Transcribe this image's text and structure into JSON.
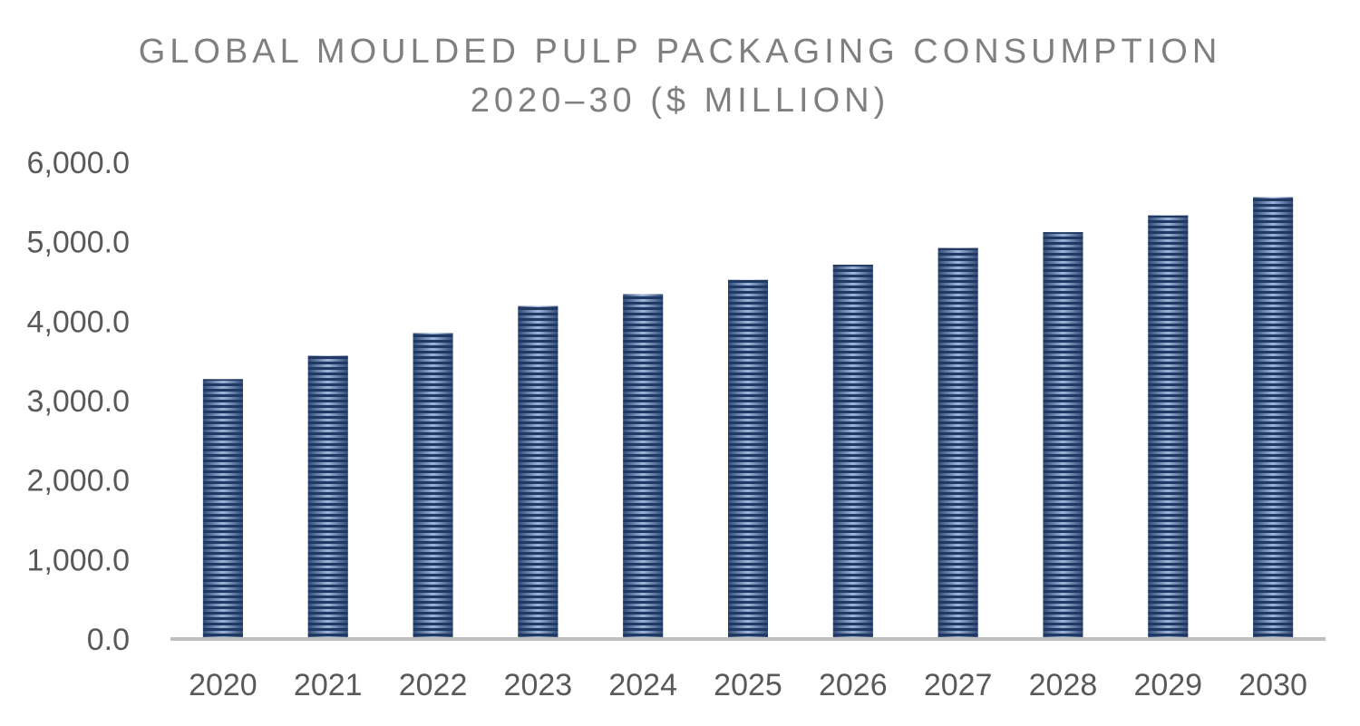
{
  "chart_data": {
    "type": "bar",
    "title_lines": [
      "GLOBAL MOULDED PULP PACKAGING CONSUMPTION",
      "2020–30 ($ MILLION)"
    ],
    "categories": [
      "2020",
      "2021",
      "2022",
      "2023",
      "2024",
      "2025",
      "2026",
      "2027",
      "2028",
      "2029",
      "2030"
    ],
    "values": [
      3270,
      3565,
      3850,
      4190,
      4340,
      4520,
      4710,
      4920,
      5120,
      5330,
      5560
    ],
    "ylim": [
      0,
      6000
    ],
    "yticks": [
      0,
      1000,
      2000,
      3000,
      4000,
      5000,
      6000
    ],
    "ytick_labels": [
      "0.0",
      "1,000.0",
      "2,000.0",
      "3,000.0",
      "4,000.0",
      "5,000.0",
      "6,000.0"
    ],
    "xlabel": "",
    "ylabel": "",
    "grid": false,
    "colors": {
      "bar_dark": "#1f3864",
      "bar_light": "#9db5d9",
      "axis": "#bfbfbf",
      "text": "#595959",
      "title": "#7f7f7f"
    }
  }
}
